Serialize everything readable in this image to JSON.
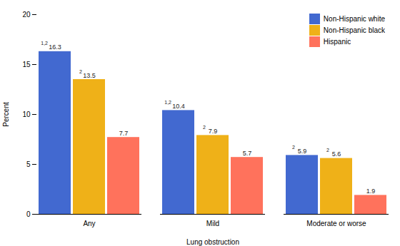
{
  "chart_data": {
    "type": "bar",
    "categories": [
      "Any",
      "Mild",
      "Moderate or worse"
    ],
    "series": [
      {
        "name": "Non-Hispanic white",
        "values": [
          16.3,
          10.4,
          5.9
        ],
        "superscripts": [
          "1,2",
          "1,2",
          "2"
        ]
      },
      {
        "name": "Non-Hispanic black",
        "values": [
          13.5,
          7.9,
          5.6
        ],
        "superscripts": [
          "2",
          "2",
          "2"
        ]
      },
      {
        "name": "Hispanic",
        "values": [
          7.7,
          5.7,
          1.9
        ]
      }
    ],
    "xlabel": "Lung obstruction",
    "ylabel": "Percent",
    "ylim": [
      0,
      20
    ],
    "yticks": [
      0,
      5,
      10,
      15,
      20
    ],
    "grid": false,
    "legend": "upper right",
    "data_labels": true
  }
}
